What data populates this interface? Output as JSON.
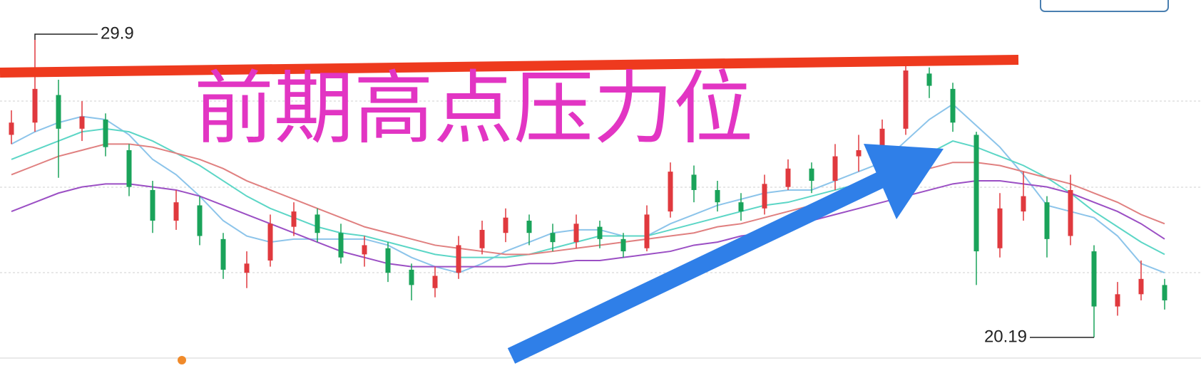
{
  "chart_data": {
    "type": "candlestick",
    "open": [
      26.8,
      27.2,
      28.1,
      27.0,
      27.3,
      26.3,
      25.0,
      24.0,
      24.5,
      23.4,
      22.3,
      22.7,
      23.8,
      24.2,
      23.6,
      22.9,
      23.1,
      22.4,
      21.8,
      22.3,
      23.1,
      23.6,
      24.0,
      23.6,
      23.3,
      23.8,
      23.4,
      23.1,
      24.3,
      25.5,
      25.0,
      24.6,
      24.4,
      25.1,
      25.7,
      25.3,
      26.1,
      26.3,
      27.0,
      28.8,
      28.3,
      26.8,
      23.1,
      24.3,
      24.6,
      23.5,
      23.0,
      21.2,
      21.6,
      21.9
    ],
    "high": [
      27.6,
      29.9,
      28.6,
      27.9,
      27.5,
      26.5,
      25.3,
      25.0,
      24.8,
      23.6,
      23.0,
      24.2,
      24.6,
      24.4,
      23.9,
      23.5,
      23.3,
      22.6,
      22.5,
      23.5,
      24.0,
      24.4,
      24.2,
      23.9,
      24.2,
      24.0,
      23.6,
      24.5,
      25.9,
      25.8,
      25.3,
      24.9,
      25.5,
      26.0,
      25.9,
      26.5,
      26.8,
      27.3,
      29.1,
      29.0,
      28.5,
      26.9,
      24.9,
      25.6,
      24.8,
      25.5,
      23.2,
      22.0,
      22.7,
      22.1
    ],
    "low": [
      26.5,
      26.9,
      25.4,
      26.6,
      26.1,
      24.8,
      23.6,
      23.7,
      23.2,
      22.1,
      21.8,
      22.5,
      23.5,
      23.3,
      22.6,
      22.5,
      22.0,
      21.4,
      21.5,
      22.1,
      22.9,
      23.3,
      23.2,
      23.0,
      23.1,
      23.1,
      22.8,
      23.0,
      24.1,
      24.6,
      24.3,
      24.0,
      24.2,
      25.0,
      24.9,
      25.0,
      25.6,
      26.0,
      26.8,
      28.0,
      26.9,
      21.9,
      22.8,
      24.0,
      22.8,
      23.2,
      20.19,
      20.9,
      21.4,
      21.1
    ],
    "close": [
      27.2,
      28.3,
      27.0,
      27.4,
      26.4,
      25.1,
      24.0,
      24.6,
      23.5,
      22.4,
      22.6,
      23.9,
      24.3,
      23.6,
      22.8,
      23.2,
      22.3,
      21.9,
      22.2,
      23.2,
      23.7,
      24.1,
      23.6,
      23.3,
      23.9,
      23.4,
      23.0,
      24.2,
      25.6,
      25.0,
      24.6,
      24.3,
      25.2,
      25.7,
      25.3,
      26.1,
      26.3,
      27.0,
      28.9,
      28.4,
      27.2,
      23.0,
      24.4,
      24.8,
      23.4,
      25.0,
      21.2,
      21.6,
      22.1,
      21.4
    ],
    "up_color": "#e0393e",
    "down_color": "#1aa35a",
    "series": [
      {
        "color": "#8cc4ea",
        "values": [
          26.5,
          26.9,
          27.2,
          27.4,
          27.3,
          26.8,
          26.0,
          25.5,
          24.8,
          24.0,
          23.5,
          23.3,
          23.4,
          23.4,
          23.4,
          23.4,
          23.2,
          22.8,
          22.5,
          22.3,
          22.6,
          23.0,
          23.3,
          23.6,
          23.7,
          23.7,
          23.5,
          23.5,
          23.9,
          24.2,
          24.5,
          24.7,
          24.9,
          25.0,
          25.0,
          25.3,
          25.6,
          25.9,
          26.6,
          27.3,
          27.8,
          27.1,
          26.4,
          25.5,
          24.5,
          24.3,
          24.1,
          23.5,
          22.6,
          22.3
        ]
      },
      {
        "color": "#5cd6c6",
        "values": [
          26.0,
          26.3,
          26.6,
          26.9,
          27.0,
          26.9,
          26.6,
          26.2,
          25.8,
          25.3,
          24.8,
          24.4,
          24.1,
          23.8,
          23.6,
          23.5,
          23.3,
          23.1,
          22.9,
          22.8,
          22.8,
          22.8,
          22.9,
          23.1,
          23.3,
          23.5,
          23.5,
          23.5,
          23.7,
          23.9,
          24.1,
          24.3,
          24.5,
          24.6,
          24.8,
          25.0,
          25.2,
          25.4,
          25.8,
          26.2,
          26.6,
          26.4,
          26.1,
          25.8,
          25.4,
          24.9,
          24.3,
          23.8,
          23.3,
          22.9
        ]
      },
      {
        "color": "#e08080",
        "values": [
          25.5,
          25.8,
          26.1,
          26.3,
          26.5,
          26.5,
          26.4,
          26.2,
          26.0,
          25.7,
          25.3,
          25.0,
          24.7,
          24.4,
          24.1,
          23.8,
          23.6,
          23.4,
          23.2,
          23.1,
          23.0,
          22.9,
          22.9,
          23.0,
          23.1,
          23.2,
          23.3,
          23.4,
          23.5,
          23.6,
          23.8,
          23.9,
          24.1,
          24.3,
          24.5,
          24.7,
          24.9,
          25.1,
          25.4,
          25.7,
          25.9,
          25.9,
          25.8,
          25.6,
          25.4,
          25.2,
          24.9,
          24.6,
          24.2,
          23.9
        ]
      },
      {
        "color": "#9b4fc4",
        "values": [
          24.3,
          24.6,
          24.9,
          25.1,
          25.2,
          25.2,
          25.1,
          25.0,
          24.8,
          24.5,
          24.2,
          23.9,
          23.6,
          23.3,
          23.0,
          22.8,
          22.6,
          22.5,
          22.5,
          22.5,
          22.5,
          22.5,
          22.6,
          22.6,
          22.7,
          22.7,
          22.8,
          22.9,
          23.0,
          23.2,
          23.3,
          23.5,
          23.6,
          23.8,
          24.0,
          24.2,
          24.4,
          24.6,
          24.8,
          25.0,
          25.2,
          25.3,
          25.3,
          25.2,
          25.1,
          24.9,
          24.6,
          24.3,
          23.9,
          23.4
        ]
      }
    ],
    "ylim": [
      19.03,
      31.2
    ],
    "high_label": 29.9,
    "low_label": 20.19,
    "annotation": "前期高点压力位"
  }
}
